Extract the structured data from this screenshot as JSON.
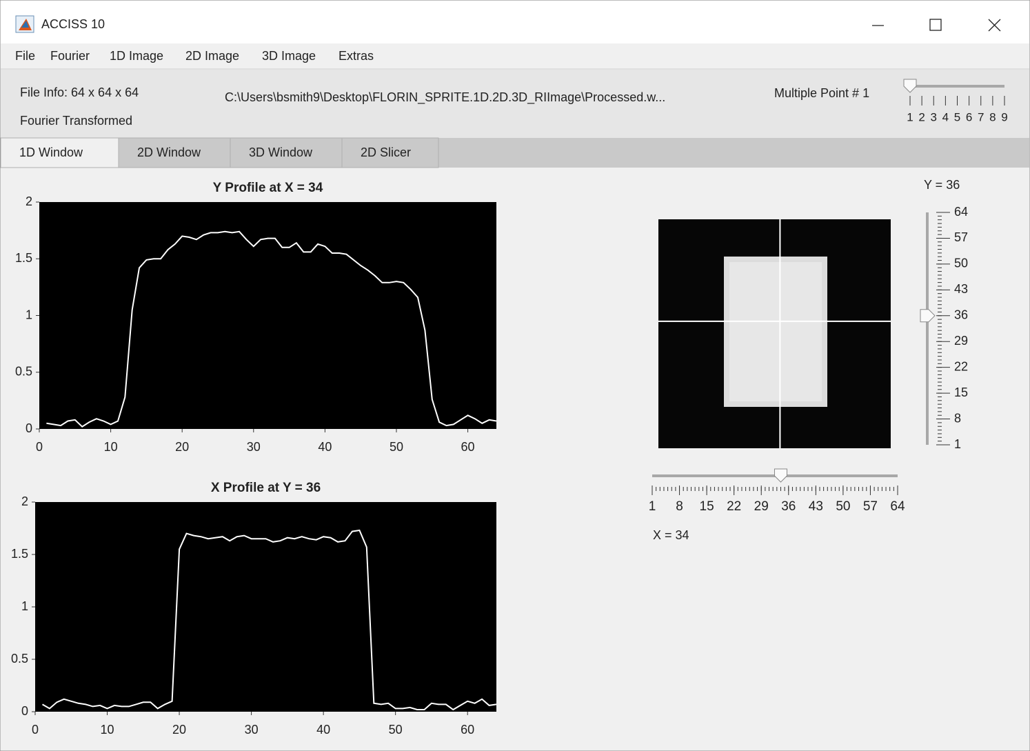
{
  "window": {
    "title": "ACCISS 10"
  },
  "menu": [
    "File",
    "Fourier",
    "1D Image",
    "2D Image",
    "3D Image",
    "Extras"
  ],
  "info": {
    "file_info": "File Info: 64 x 64 x 64",
    "status": "Fourier Transformed",
    "path": "C:\\Users\\bsmith9\\Desktop\\FLORIN_SPRITE.1D.2D.3D_RIImage\\Processed.w...",
    "multiple_point": "Multiple Point # 1"
  },
  "multi_slider": {
    "value": 1,
    "lim": [
      1,
      9
    ],
    "ticks": [
      1,
      2,
      3,
      4,
      5,
      6,
      7,
      8,
      9
    ]
  },
  "tabs": [
    "1D Window",
    "2D Window",
    "3D Window",
    "2D Slicer"
  ],
  "chart_data": [
    {
      "type": "line",
      "title": "Y Profile at X = 34",
      "color": "#ffffff",
      "background": "#000000",
      "xlim": [
        0,
        64
      ],
      "xticks": [
        0,
        10,
        20,
        30,
        40,
        50,
        60
      ],
      "ylim": [
        0,
        2
      ],
      "yticks": [
        0,
        0.5,
        1,
        1.5,
        2
      ],
      "x": [
        1,
        2,
        3,
        4,
        5,
        6,
        7,
        8,
        9,
        10,
        11,
        12,
        13,
        14,
        15,
        16,
        17,
        18,
        19,
        20,
        21,
        22,
        23,
        24,
        25,
        26,
        27,
        28,
        29,
        30,
        31,
        32,
        33,
        34,
        35,
        36,
        37,
        38,
        39,
        40,
        41,
        42,
        43,
        44,
        45,
        46,
        47,
        48,
        49,
        50,
        51,
        52,
        53,
        54,
        55,
        56,
        57,
        58,
        59,
        60,
        61,
        62,
        63,
        64
      ],
      "values": [
        0.05,
        0.04,
        0.03,
        0.07,
        0.08,
        0.02,
        0.06,
        0.09,
        0.07,
        0.04,
        0.07,
        0.28,
        1.05,
        1.42,
        1.49,
        1.5,
        1.5,
        1.58,
        1.63,
        1.7,
        1.69,
        1.67,
        1.71,
        1.73,
        1.73,
        1.74,
        1.73,
        1.74,
        1.67,
        1.61,
        1.67,
        1.68,
        1.68,
        1.6,
        1.6,
        1.64,
        1.56,
        1.56,
        1.63,
        1.61,
        1.55,
        1.55,
        1.54,
        1.49,
        1.44,
        1.4,
        1.35,
        1.29,
        1.29,
        1.3,
        1.29,
        1.23,
        1.16,
        0.87,
        0.26,
        0.06,
        0.03,
        0.04,
        0.08,
        0.12,
        0.09,
        0.05,
        0.08,
        0.07
      ]
    },
    {
      "type": "line",
      "title": "X Profile at Y = 36",
      "color": "#ffffff",
      "background": "#000000",
      "xlim": [
        0,
        64
      ],
      "xticks": [
        0,
        10,
        20,
        30,
        40,
        50,
        60
      ],
      "ylim": [
        0,
        2
      ],
      "yticks": [
        0,
        0.5,
        1,
        1.5,
        2
      ],
      "x": [
        1,
        2,
        3,
        4,
        5,
        6,
        7,
        8,
        9,
        10,
        11,
        12,
        13,
        14,
        15,
        16,
        17,
        18,
        19,
        20,
        21,
        22,
        23,
        24,
        25,
        26,
        27,
        28,
        29,
        30,
        31,
        32,
        33,
        34,
        35,
        36,
        37,
        38,
        39,
        40,
        41,
        42,
        43,
        44,
        45,
        46,
        47,
        48,
        49,
        50,
        51,
        52,
        53,
        54,
        55,
        56,
        57,
        58,
        59,
        60,
        61,
        62,
        63,
        64
      ],
      "values": [
        0.07,
        0.03,
        0.09,
        0.12,
        0.1,
        0.08,
        0.07,
        0.05,
        0.06,
        0.03,
        0.06,
        0.05,
        0.05,
        0.07,
        0.09,
        0.09,
        0.03,
        0.07,
        0.1,
        1.55,
        1.7,
        1.68,
        1.67,
        1.65,
        1.66,
        1.67,
        1.63,
        1.67,
        1.68,
        1.65,
        1.65,
        1.65,
        1.62,
        1.63,
        1.66,
        1.65,
        1.67,
        1.65,
        1.64,
        1.67,
        1.66,
        1.62,
        1.63,
        1.72,
        1.73,
        1.57,
        0.08,
        0.07,
        0.08,
        0.03,
        0.03,
        0.04,
        0.02,
        0.02,
        0.08,
        0.07,
        0.07,
        0.02,
        0.06,
        0.1,
        0.08,
        0.12,
        0.06,
        0.07
      ]
    }
  ],
  "image_view": {
    "y_label": "Y = 36",
    "x_label": "X = 34",
    "y_slider": {
      "value": 36,
      "lim": [
        1,
        64
      ],
      "ticks": [
        1,
        8,
        15,
        22,
        29,
        36,
        43,
        50,
        57,
        64
      ]
    },
    "x_slider": {
      "value": 34,
      "lim": [
        1,
        64
      ],
      "ticks": [
        1,
        8,
        15,
        22,
        29,
        36,
        43,
        50,
        57,
        64
      ]
    }
  }
}
